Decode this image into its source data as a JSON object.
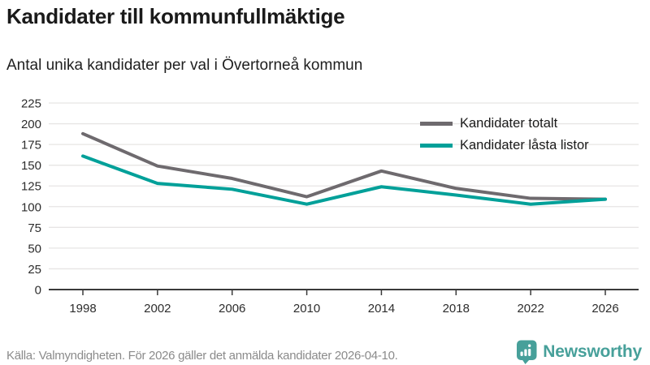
{
  "header": {
    "title": "Kandidater till kommunfullmäktige",
    "subtitle": "Antal unika kandidater per val i Övertorneå kommun"
  },
  "chart_data": {
    "type": "line",
    "x": [
      1998,
      2002,
      2006,
      2010,
      2014,
      2018,
      2022,
      2026
    ],
    "series": [
      {
        "name": "Kandidater totalt",
        "color": "#6e6a6e",
        "values": [
          188,
          149,
          134,
          112,
          143,
          122,
          110,
          109
        ]
      },
      {
        "name": "Kandidater låsta listor",
        "color": "#00a099",
        "values": [
          161,
          128,
          121,
          103,
          124,
          114,
          103,
          109
        ]
      }
    ],
    "title": "Kandidater till kommunfullmäktige",
    "subtitle": "Antal unika kandidater per val i Övertorneå kommun",
    "xlabel": "",
    "ylabel": "",
    "ylim": [
      0,
      225
    ],
    "ytick_step": 25,
    "grid": "horizontal",
    "legend_position": "top-right",
    "colors": {
      "grid": "#e7e5e4",
      "axis": "#3a3a3a",
      "tick_text": "#2d2d2d"
    }
  },
  "footer": {
    "source": "Källa: Valmyndigheten. För 2026 gäller det anmälda kandidater 2026-04-10.",
    "brand": "Newsworthy",
    "brand_color": "#47a09a"
  }
}
